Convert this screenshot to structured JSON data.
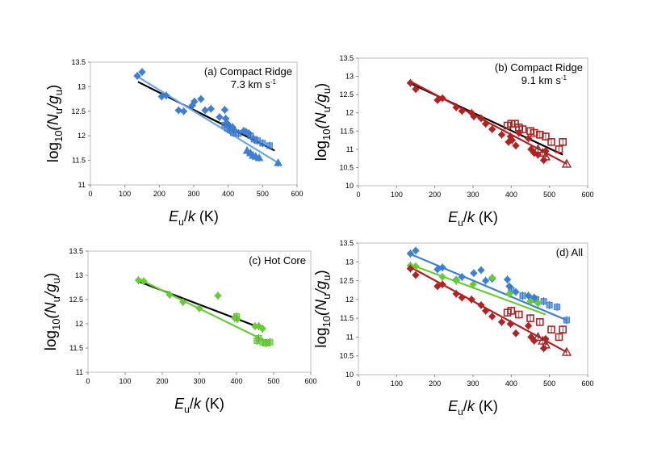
{
  "figure": {
    "panels_title": ""
  },
  "chart_data": [
    {
      "type": "scatter",
      "panel_label": "(a) Compact Ridge",
      "panel_label_2": "7.3 km s",
      "panel_label_2_sup": "-1",
      "xlabel_main": "E",
      "xlabel_sub": "u",
      "xlabel_mid": "/",
      "xlabel_k": "k",
      "xlabel_unit": " (K)",
      "ylabel_pre": "log",
      "ylabel_sub10": "10",
      "ylabel_open": "(N",
      "ylabel_sub_u1": "u",
      "ylabel_slash": "/g",
      "ylabel_sub_u2": "u",
      "ylabel_close": ")",
      "xlim": [
        0,
        600
      ],
      "ylim": [
        11,
        13.5
      ],
      "xticks": [
        "0",
        "100",
        "200",
        "300",
        "400",
        "500",
        "600"
      ],
      "yticks": [
        "11",
        "11.5",
        "12",
        "12.5",
        "13",
        "13.5"
      ],
      "series": [
        {
          "color": "#3d7fd6",
          "marker": "diamond",
          "points": [
            [
              136,
              13.22
            ],
            [
              150,
              13.3
            ],
            [
              207,
              12.8
            ],
            [
              220,
              12.82
            ],
            [
              256,
              12.52
            ],
            [
              271,
              12.5
            ],
            [
              296,
              12.62
            ],
            [
              302,
              12.7
            ],
            [
              321,
              12.75
            ],
            [
              333,
              12.52
            ],
            [
              350,
              12.55
            ],
            [
              375,
              12.38
            ],
            [
              390,
              12.53
            ],
            [
              393,
              12.35
            ],
            [
              398,
              12.25
            ],
            [
              402,
              12.2
            ],
            [
              412,
              12.18
            ],
            [
              420,
              12.1
            ],
            [
              445,
              12.1
            ],
            [
              452,
              12.08
            ],
            [
              460,
              12.05
            ]
          ]
        },
        {
          "color": "#3d7fd6",
          "marker": "square",
          "points": [
            [
              390,
              12.22
            ],
            [
              398,
              12.15
            ],
            [
              405,
              12.12
            ],
            [
              415,
              12.06
            ],
            [
              430,
              12.05
            ],
            [
              465,
              12.0
            ],
            [
              475,
              11.93
            ],
            [
              485,
              11.9
            ],
            [
              500,
              11.85
            ],
            [
              520,
              11.8
            ]
          ]
        },
        {
          "color": "#3d7fd6",
          "marker": "triangle",
          "points": [
            [
              455,
              11.7
            ],
            [
              465,
              11.65
            ],
            [
              472,
              11.6
            ],
            [
              480,
              11.58
            ],
            [
              490,
              11.55
            ],
            [
              545,
              11.45
            ]
          ]
        }
      ],
      "fits": [
        {
          "color": "#000000",
          "x": [
            138,
            535
          ],
          "y": [
            13.1,
            11.7
          ]
        },
        {
          "color": "#6aa8ea",
          "x": [
            138,
            545
          ],
          "y": [
            13.2,
            11.45
          ]
        }
      ]
    },
    {
      "type": "scatter",
      "panel_label": "(b) Compact Ridge",
      "panel_label_2": "9.1 km s",
      "panel_label_2_sup": "-1",
      "xlabel_main": "E",
      "xlabel_sub": "u",
      "xlabel_mid": "/",
      "xlabel_k": "k",
      "xlabel_unit": " (K)",
      "ylabel_pre": "log",
      "ylabel_sub10": "10",
      "ylabel_open": "(N",
      "ylabel_sub_u1": "u",
      "ylabel_slash": "/g",
      "ylabel_sub_u2": "u",
      "ylabel_close": ")",
      "xlim": [
        0,
        600
      ],
      "ylim": [
        10,
        13.5
      ],
      "xticks": [
        "0",
        "100",
        "200",
        "300",
        "400",
        "500",
        "600"
      ],
      "yticks": [
        "10",
        "10.5",
        "11",
        "11.5",
        "12",
        "12.5",
        "13",
        "13.5"
      ],
      "series": [
        {
          "color": "#b22222",
          "marker": "diamond",
          "points": [
            [
              136,
              12.82
            ],
            [
              150,
              12.65
            ],
            [
              207,
              12.35
            ],
            [
              220,
              12.4
            ],
            [
              256,
              12.15
            ],
            [
              271,
              12.05
            ],
            [
              296,
              12.0
            ],
            [
              302,
              11.9
            ],
            [
              321,
              11.85
            ],
            [
              333,
              11.7
            ],
            [
              350,
              11.55
            ],
            [
              375,
              11.4
            ],
            [
              393,
              11.2
            ],
            [
              398,
              11.35
            ],
            [
              402,
              11.25
            ],
            [
              412,
              11.1
            ],
            [
              420,
              11.45
            ],
            [
              445,
              11.3
            ],
            [
              452,
              11.0
            ],
            [
              460,
              10.9
            ],
            [
              470,
              10.85
            ],
            [
              485,
              10.7
            ],
            [
              490,
              10.95
            ]
          ]
        },
        {
          "color": "#b22222",
          "marker": "square_open",
          "points": [
            [
              390,
              11.65
            ],
            [
              400,
              11.7
            ],
            [
              410,
              11.7
            ],
            [
              420,
              11.6
            ],
            [
              430,
              11.55
            ],
            [
              450,
              11.5
            ],
            [
              460,
              11.45
            ],
            [
              475,
              11.4
            ],
            [
              490,
              11.35
            ],
            [
              505,
              11.2
            ],
            [
              525,
              11.0
            ],
            [
              535,
              11.2
            ]
          ]
        },
        {
          "color": "#b22222",
          "marker": "triangle_open",
          "points": [
            [
              470,
              11.0
            ],
            [
              482,
              10.9
            ],
            [
              490,
              10.8
            ],
            [
              545,
              10.6
            ]
          ]
        }
      ],
      "fits": [
        {
          "color": "#000000",
          "x": [
            138,
            535
          ],
          "y": [
            12.8,
            10.85
          ]
        },
        {
          "color": "#b22222",
          "x": [
            138,
            545
          ],
          "y": [
            12.85,
            10.6
          ]
        }
      ]
    },
    {
      "type": "scatter",
      "panel_label": "(c) Hot Core",
      "panel_label_2": "",
      "panel_label_2_sup": "",
      "xlabel_main": "E",
      "xlabel_sub": "u",
      "xlabel_mid": "/",
      "xlabel_k": "k",
      "xlabel_unit": " (K)",
      "ylabel_pre": "log",
      "ylabel_sub10": "10",
      "ylabel_open": "(N",
      "ylabel_sub_u1": "u",
      "ylabel_slash": "/g",
      "ylabel_sub_u2": "u",
      "ylabel_close": ")",
      "xlim": [
        0,
        600
      ],
      "ylim": [
        11,
        13.5
      ],
      "xticks": [
        "0",
        "100",
        "200",
        "300",
        "400",
        "500",
        "600"
      ],
      "yticks": [
        "11",
        "11.5",
        "12",
        "12.5",
        "13",
        "13.5"
      ],
      "series": [
        {
          "color": "#66cc33",
          "marker": "diamond",
          "points": [
            [
              136,
              12.9
            ],
            [
              150,
              12.88
            ],
            [
              220,
              12.6
            ],
            [
              256,
              12.45
            ],
            [
              300,
              12.32
            ],
            [
              350,
              12.58
            ],
            [
              395,
              12.12
            ],
            [
              402,
              12.1
            ],
            [
              450,
              11.95
            ],
            [
              460,
              11.95
            ],
            [
              470,
              11.9
            ]
          ]
        },
        {
          "color": "#66cc33",
          "marker": "square",
          "points": [
            [
              400,
              12.15
            ],
            [
              455,
              11.65
            ],
            [
              460,
              11.7
            ],
            [
              470,
              11.62
            ],
            [
              480,
              11.6
            ],
            [
              490,
              11.62
            ]
          ]
        }
      ],
      "fits": [
        {
          "color": "#000000",
          "x": [
            138,
            470
          ],
          "y": [
            12.87,
            11.9
          ]
        },
        {
          "color": "#66cc33",
          "x": [
            138,
            490
          ],
          "y": [
            12.92,
            11.6
          ]
        }
      ]
    },
    {
      "type": "scatter",
      "panel_label": "(d) All",
      "panel_label_2": "",
      "panel_label_2_sup": "",
      "xlabel_main": "E",
      "xlabel_sub": "u",
      "xlabel_mid": "/",
      "xlabel_k": "k",
      "xlabel_unit": " (K)",
      "ylabel_pre": "log",
      "ylabel_sub10": "10",
      "ylabel_open": "(N",
      "ylabel_sub_u1": "u",
      "ylabel_slash": "/g",
      "ylabel_sub_u2": "u",
      "ylabel_close": ")",
      "xlim": [
        0,
        600
      ],
      "ylim": [
        10,
        13.5
      ],
      "xticks": [
        "0",
        "100",
        "200",
        "300",
        "400",
        "500",
        "600"
      ],
      "yticks": [
        "10",
        "10.5",
        "11",
        "11.5",
        "12",
        "12.5",
        "13",
        "13.5"
      ],
      "series": [
        {
          "color": "#3d7fd6",
          "marker": "diamond",
          "points": [
            [
              136,
              13.22
            ],
            [
              150,
              13.3
            ],
            [
              207,
              12.8
            ],
            [
              220,
              12.85
            ],
            [
              256,
              12.52
            ],
            [
              271,
              12.6
            ],
            [
              302,
              12.7
            ],
            [
              321,
              12.78
            ],
            [
              333,
              12.5
            ],
            [
              350,
              12.55
            ],
            [
              390,
              12.53
            ],
            [
              395,
              12.35
            ],
            [
              412,
              12.2
            ],
            [
              445,
              12.1
            ],
            [
              460,
              12.05
            ]
          ]
        },
        {
          "color": "#3d7fd6",
          "marker": "square",
          "points": [
            [
              400,
              12.25
            ],
            [
              430,
              12.1
            ],
            [
              465,
              12.0
            ],
            [
              485,
              11.95
            ],
            [
              500,
              11.85
            ],
            [
              520,
              11.8
            ],
            [
              545,
              11.45
            ]
          ]
        },
        {
          "color": "#66cc33",
          "marker": "diamond",
          "points": [
            [
              136,
              12.9
            ],
            [
              150,
              12.88
            ],
            [
              220,
              12.6
            ],
            [
              256,
              12.5
            ],
            [
              300,
              12.4
            ],
            [
              350,
              12.58
            ],
            [
              395,
              12.15
            ],
            [
              450,
              11.95
            ],
            [
              470,
              11.9
            ]
          ]
        },
        {
          "color": "#b22222",
          "marker": "diamond",
          "points": [
            [
              136,
              12.82
            ],
            [
              150,
              12.65
            ],
            [
              207,
              12.35
            ],
            [
              220,
              12.4
            ],
            [
              256,
              12.15
            ],
            [
              271,
              12.05
            ],
            [
              296,
              12.0
            ],
            [
              321,
              11.85
            ],
            [
              333,
              11.7
            ],
            [
              350,
              11.55
            ],
            [
              375,
              11.4
            ],
            [
              398,
              11.35
            ],
            [
              412,
              11.1
            ],
            [
              445,
              11.3
            ],
            [
              452,
              11.0
            ],
            [
              460,
              10.9
            ],
            [
              485,
              10.7
            ],
            [
              490,
              10.95
            ]
          ]
        },
        {
          "color": "#b22222",
          "marker": "square_open",
          "points": [
            [
              390,
              11.65
            ],
            [
              400,
              11.7
            ],
            [
              420,
              11.6
            ],
            [
              450,
              11.5
            ],
            [
              475,
              11.4
            ],
            [
              505,
              11.2
            ],
            [
              525,
              11.0
            ],
            [
              535,
              11.2
            ]
          ]
        },
        {
          "color": "#b22222",
          "marker": "triangle_open",
          "points": [
            [
              470,
              11.0
            ],
            [
              482,
              10.9
            ],
            [
              490,
              10.8
            ],
            [
              545,
              10.6
            ]
          ]
        }
      ],
      "fits": [
        {
          "color": "#3d7fd6",
          "x": [
            138,
            545
          ],
          "y": [
            13.2,
            11.45
          ]
        },
        {
          "color": "#66cc33",
          "x": [
            138,
            490
          ],
          "y": [
            12.92,
            11.6
          ]
        },
        {
          "color": "#b22222",
          "x": [
            138,
            545
          ],
          "y": [
            12.85,
            10.6
          ]
        }
      ]
    }
  ]
}
